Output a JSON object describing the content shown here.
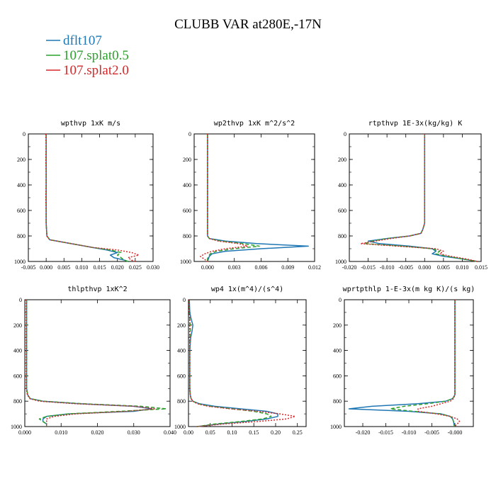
{
  "figure": {
    "title": "CLUBB VAR at280E,-17N",
    "legend": [
      {
        "label": "dflt107",
        "color": "#1f77b4"
      },
      {
        "label": "107.splat0.5",
        "color": "#2ca02c"
      },
      {
        "label": "107.splat2.0",
        "color": "#d62728"
      }
    ]
  },
  "chart_data": [
    {
      "type": "line",
      "title": "wpthvp  1xK m/s",
      "xlim": [
        -0.005,
        0.03
      ],
      "ylim": [
        1000,
        0
      ],
      "xticks": [
        "-0.005",
        "0.000",
        "0.005",
        "0.010",
        "0.015",
        "0.020",
        "0.025",
        "0.030"
      ],
      "yticks": [
        "0",
        "200",
        "400",
        "600",
        "800",
        "1000"
      ],
      "y": [
        0,
        100,
        200,
        300,
        400,
        500,
        600,
        700,
        800,
        830,
        850,
        870,
        890,
        910,
        930,
        950,
        970,
        990,
        1000
      ],
      "series": [
        {
          "name": "dflt107",
          "color": "#1f77b4",
          "x": [
            0,
            0,
            0,
            0,
            0,
            0,
            0,
            0,
            0.0002,
            0.001,
            0.005,
            0.009,
            0.013,
            0.017,
            0.02,
            0.018,
            0.019,
            0.022,
            0.023
          ]
        },
        {
          "name": "107.splat0.5",
          "color": "#2ca02c",
          "x": [
            0,
            0,
            0,
            0,
            0,
            0,
            0,
            0,
            0.0002,
            0.001,
            0.005,
            0.009,
            0.013,
            0.018,
            0.021,
            0.02,
            0.021,
            0.022,
            0.023
          ]
        },
        {
          "name": "107.splat2.0",
          "color": "#d62728",
          "x": [
            -0.0001,
            0,
            -0.0001,
            0,
            0,
            -0.0001,
            0,
            0,
            0.0002,
            0.001,
            0.005,
            0.009,
            0.013,
            0.02,
            0.024,
            0.026,
            0.023,
            0.024,
            0.025
          ]
        }
      ]
    },
    {
      "type": "line",
      "title": "wp2thvp  1xK m^2/s^2",
      "xlim": [
        -0.0015,
        0.012
      ],
      "ylim": [
        1000,
        0
      ],
      "xticks": [
        "0.000",
        "0.003",
        "0.006",
        "0.009",
        "0.012"
      ],
      "yticks": [
        "0",
        "200",
        "400",
        "600",
        "800",
        "1000"
      ],
      "y": [
        0,
        100,
        200,
        300,
        400,
        500,
        600,
        700,
        800,
        820,
        840,
        860,
        880,
        900,
        920,
        940,
        960,
        980,
        1000
      ],
      "series": [
        {
          "name": "dflt107",
          "color": "#1f77b4",
          "x": [
            0,
            0,
            0,
            0,
            0,
            0,
            0,
            0,
            0,
            0.0002,
            0.002,
            0.0055,
            0.0113,
            0.006,
            0.002,
            0.0005,
            0.0002,
            0.0001,
            0
          ]
        },
        {
          "name": "107.splat0.5",
          "color": "#2ca02c",
          "x": [
            0,
            0,
            0,
            0,
            0,
            0,
            0,
            0,
            0,
            0.0002,
            0.0015,
            0.004,
            0.0058,
            0.003,
            0.001,
            0.0003,
            0.0001,
            0,
            0
          ]
        },
        {
          "name": "107.splat2.0",
          "color": "#d62728",
          "x": [
            0,
            0,
            0,
            0,
            0,
            0,
            0,
            0,
            0,
            0.0002,
            0.0012,
            0.0035,
            0.0045,
            0.002,
            0.0005,
            -0.0003,
            -0.0008,
            -0.0004,
            0
          ]
        }
      ]
    },
    {
      "type": "line",
      "title": "rtpthvp  1E-3x(kg/kg) K",
      "xlim": [
        -0.02,
        0.015
      ],
      "ylim": [
        1000,
        0
      ],
      "xticks": [
        "-0.020",
        "-0.015",
        "-0.010",
        "-0.005",
        "0.000",
        "0.005",
        "0.010",
        "0.015"
      ],
      "yticks": [
        "0",
        "200",
        "400",
        "600",
        "800",
        "1000"
      ],
      "y": [
        0,
        100,
        200,
        300,
        400,
        500,
        600,
        700,
        750,
        780,
        800,
        820,
        840,
        860,
        880,
        900,
        920,
        940,
        960,
        980,
        1000
      ],
      "series": [
        {
          "name": "dflt107",
          "color": "#1f77b4",
          "x": [
            0,
            0,
            0,
            0,
            0,
            0,
            0,
            0,
            -0.0005,
            -0.001,
            -0.004,
            -0.01,
            -0.015,
            -0.012,
            -0.004,
            0.002,
            0.003,
            0.002,
            0.005,
            0.01,
            0.014
          ]
        },
        {
          "name": "107.splat0.5",
          "color": "#2ca02c",
          "x": [
            0,
            0,
            0,
            0,
            0,
            0,
            0,
            0,
            -0.0005,
            -0.001,
            -0.004,
            -0.01,
            -0.014,
            -0.016,
            -0.006,
            0.002,
            0.004,
            0.003,
            0.006,
            0.01,
            0.014
          ]
        },
        {
          "name": "107.splat2.0",
          "color": "#d62728",
          "x": [
            0,
            0,
            0,
            0,
            0,
            0,
            0,
            0,
            -0.0005,
            -0.001,
            -0.004,
            -0.009,
            -0.013,
            -0.017,
            -0.007,
            0.003,
            0.005,
            0.004,
            0.007,
            0.011,
            0.014
          ]
        }
      ]
    },
    {
      "type": "line",
      "title": "thlpthvp  1xK^2",
      "xlim": [
        0,
        0.04
      ],
      "ylim": [
        1000,
        0
      ],
      "xticks": [
        "0.000",
        "0.010",
        "0.020",
        "0.030",
        "0.040"
      ],
      "yticks": [
        "0",
        "200",
        "400",
        "600",
        "800",
        "1000"
      ],
      "y": [
        0,
        100,
        200,
        300,
        400,
        500,
        600,
        700,
        750,
        780,
        800,
        820,
        840,
        860,
        880,
        900,
        920,
        940,
        960,
        980,
        1000
      ],
      "series": [
        {
          "name": "dflt107",
          "color": "#1f77b4",
          "x": [
            0.0005,
            0.0005,
            0.0005,
            0.0005,
            0.0005,
            0.0005,
            0.0005,
            0.0005,
            0.0008,
            0.0015,
            0.005,
            0.015,
            0.03,
            0.035,
            0.03,
            0.012,
            0.006,
            0.005,
            0.005,
            0.006,
            0.006
          ]
        },
        {
          "name": "107.splat0.5",
          "color": "#2ca02c",
          "x": [
            0.0005,
            0.0005,
            0.0005,
            0.0005,
            0.0005,
            0.0005,
            0.0005,
            0.0005,
            0.0008,
            0.0015,
            0.005,
            0.016,
            0.032,
            0.039,
            0.026,
            0.012,
            0.006,
            0.004,
            0.005,
            0.006,
            0.006
          ]
        },
        {
          "name": "107.splat2.0",
          "color": "#d62728",
          "x": [
            0.0004,
            0.0004,
            0.0004,
            0.0004,
            0.0004,
            0.0004,
            0.0004,
            0.0004,
            0.0007,
            0.0014,
            0.004,
            0.014,
            0.03,
            0.036,
            0.028,
            0.014,
            0.008,
            0.006,
            0.006,
            0.006,
            0.006
          ]
        }
      ]
    },
    {
      "type": "line",
      "title": "wp4  1x(m^4)/(s^4)",
      "xlim": [
        0,
        0.27
      ],
      "ylim": [
        1000,
        0
      ],
      "xticks": [
        "0.00",
        "0.05",
        "0.10",
        "0.15",
        "0.20",
        "0.25"
      ],
      "yticks": [
        "0",
        "200",
        "400",
        "600",
        "800",
        "1000"
      ],
      "y": [
        0,
        100,
        150,
        200,
        250,
        300,
        400,
        500,
        600,
        700,
        750,
        780,
        800,
        820,
        840,
        860,
        880,
        900,
        920,
        940,
        960,
        980,
        1000
      ],
      "series": [
        {
          "name": "dflt107",
          "color": "#1f77b4",
          "x": [
            0.002,
            0.003,
            0.006,
            0.01,
            0.008,
            0.005,
            0.003,
            0.003,
            0.003,
            0.003,
            0.004,
            0.006,
            0.01,
            0.025,
            0.06,
            0.12,
            0.18,
            0.205,
            0.205,
            0.18,
            0.13,
            0.07,
            0.02
          ]
        },
        {
          "name": "107.splat0.5",
          "color": "#2ca02c",
          "x": [
            0.002,
            0.002,
            0.003,
            0.004,
            0.004,
            0.003,
            0.003,
            0.003,
            0.003,
            0.003,
            0.004,
            0.006,
            0.01,
            0.022,
            0.05,
            0.1,
            0.15,
            0.18,
            0.19,
            0.17,
            0.12,
            0.06,
            0.02
          ]
        },
        {
          "name": "107.splat2.0",
          "color": "#d62728",
          "x": [
            0.002,
            0.002,
            0.003,
            0.003,
            0.003,
            0.003,
            0.003,
            0.003,
            0.003,
            0.003,
            0.004,
            0.006,
            0.01,
            0.02,
            0.045,
            0.095,
            0.16,
            0.21,
            0.245,
            0.225,
            0.16,
            0.08,
            0.02
          ]
        }
      ]
    },
    {
      "type": "line",
      "title": "wprtpthlp  1-E-3x(m kg K)/(s kg)",
      "xlim": [
        -0.024,
        0.004
      ],
      "ylim": [
        1000,
        0
      ],
      "xticks": [
        "-0.020",
        "-0.015",
        "-0.010",
        "-0.005",
        "-0.000"
      ],
      "yticks": [
        "0",
        "200",
        "400",
        "600",
        "800",
        "1000"
      ],
      "y": [
        0,
        100,
        200,
        300,
        400,
        500,
        600,
        700,
        750,
        780,
        800,
        820,
        840,
        860,
        880,
        900,
        920,
        940,
        960,
        980,
        1000
      ],
      "series": [
        {
          "name": "dflt107",
          "color": "#1f77b4",
          "x": [
            0,
            0,
            0,
            0,
            0,
            0,
            0,
            0,
            0,
            -0.0005,
            -0.002,
            -0.008,
            -0.018,
            -0.023,
            -0.01,
            -0.003,
            -0.001,
            -0.0005,
            -0.0003,
            -0.0002,
            -0.0001
          ]
        },
        {
          "name": "107.splat0.5",
          "color": "#2ca02c",
          "x": [
            0,
            0,
            0,
            0,
            0,
            0,
            0,
            0,
            0,
            -0.0005,
            -0.002,
            -0.006,
            -0.011,
            -0.014,
            -0.009,
            -0.003,
            -0.001,
            -0.0005,
            -0.0003,
            -0.0002,
            -0.0001
          ]
        },
        {
          "name": "107.splat2.0",
          "color": "#d62728",
          "x": [
            0,
            0,
            0,
            0,
            0,
            0,
            0,
            0,
            0,
            -0.0003,
            -0.001,
            -0.003,
            -0.005,
            -0.008,
            -0.008,
            -0.004,
            -0.001,
            0.0005,
            0.001,
            0.0005,
            -0.0001
          ]
        }
      ]
    }
  ]
}
